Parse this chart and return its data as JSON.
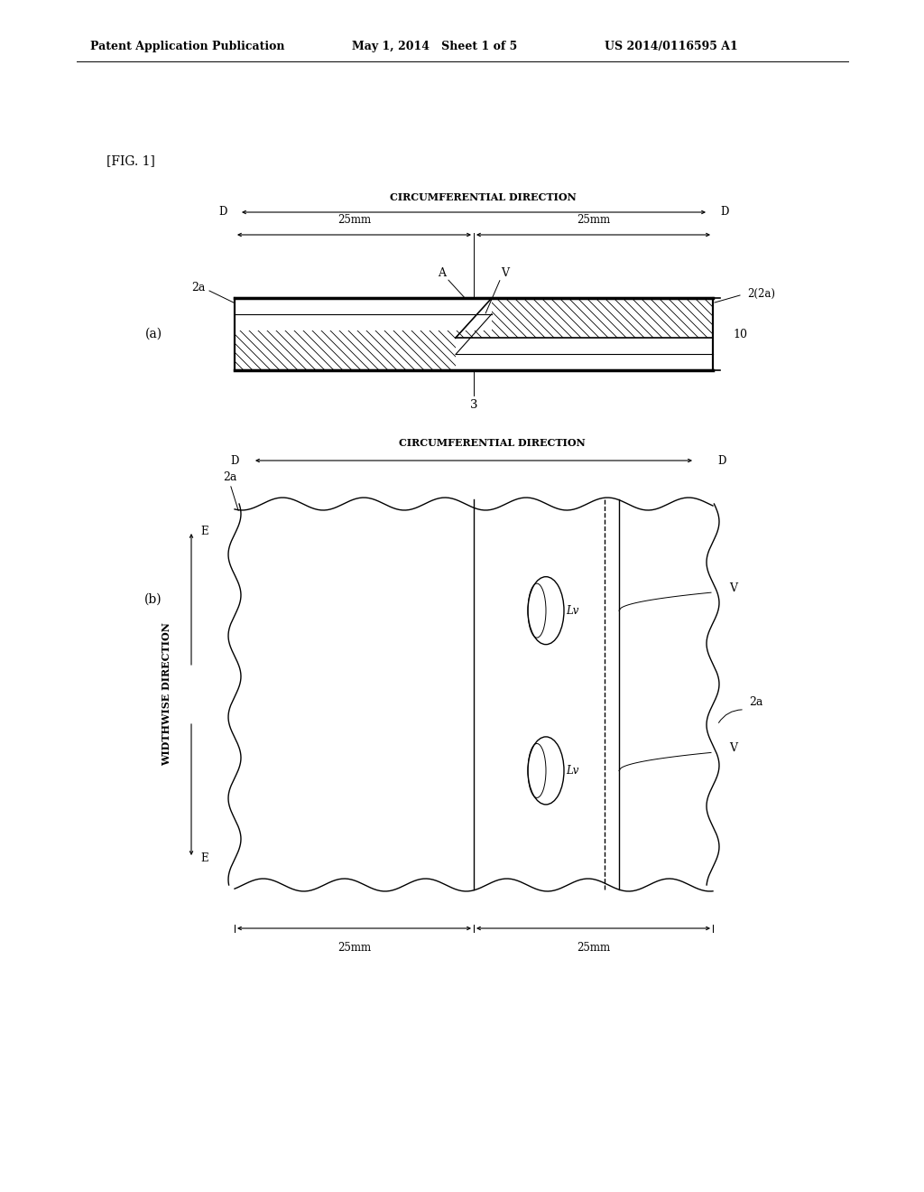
{
  "background_color": "#ffffff",
  "header_left": "Patent Application Publication",
  "header_mid": "May 1, 2014   Sheet 1 of 5",
  "header_right": "US 2014/0116595 A1",
  "fig_label": "[FIG. 1]",
  "fig_a_label": "(a)",
  "fig_b_label": "(b)",
  "circ_dir_label": "CIRCUMFERENTIAL DIRECTION",
  "width_dir_label": "WIDTHWISE DIRECTION",
  "dim_25mm": "25mm",
  "label_2a": "2a",
  "label_2_2a": "2(2a)",
  "label_3": "3",
  "label_10": "10",
  "text_color": "#000000",
  "line_color": "#000000"
}
